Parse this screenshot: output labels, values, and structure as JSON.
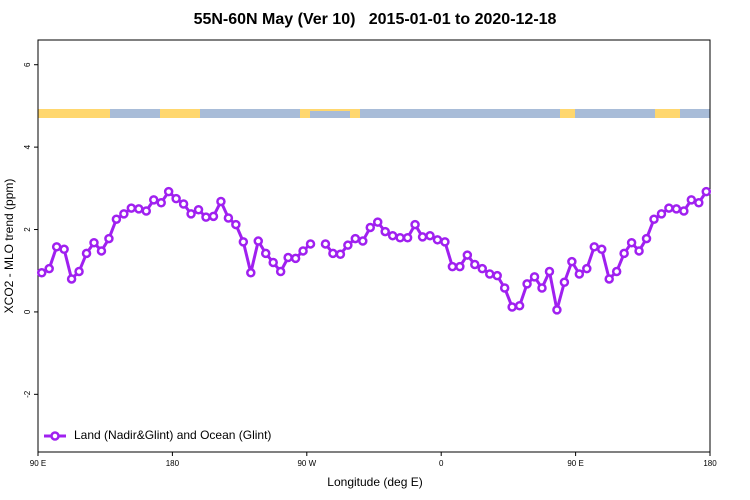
{
  "chart_data": {
    "type": "line",
    "title": "55N-60N May (Ver 10)   2015-01-01 to 2020-12-18",
    "x_label": "Longitude (deg E)",
    "y_label": "XCO2 - MLO trend (ppm)",
    "x": [
      92.5,
      97.5,
      102.5,
      107.5,
      112.5,
      117.5,
      122.5,
      127.5,
      132.5,
      137.5,
      142.5,
      147.5,
      152.5,
      157.5,
      162.5,
      167.5,
      172.5,
      177.5,
      182.5,
      187.5,
      192.5,
      197.5,
      202.5,
      207.5,
      212.5,
      217.5,
      222.5,
      227.5,
      232.5,
      237.5,
      242.5,
      247.5,
      252.5,
      257.5,
      262.5,
      267.5,
      272.5,
      277.5,
      282.5,
      287.5,
      292.5,
      297.5,
      302.5,
      307.5,
      312.5,
      317.5,
      322.5,
      327.5,
      332.5,
      337.5,
      342.5,
      347.5,
      352.5,
      357.5,
      362.5,
      367.5,
      372.5,
      377.5,
      382.5,
      387.5,
      392.5,
      397.5,
      402.5,
      407.5,
      412.5,
      417.5,
      422.5,
      427.5,
      432.5,
      437.5,
      442.5,
      447.5,
      452.5,
      457.5,
      462.5,
      467.5,
      472.5,
      477.5,
      482.5,
      487.5,
      492.5,
      497.5,
      502.5,
      507.5,
      512.5,
      517.5,
      522.5,
      527.5,
      532.5,
      537.5
    ],
    "series": [
      {
        "name": "Land (Nadir&Glint) and Ocean (Glint)",
        "color": "#a020f0",
        "values": [
          0.95,
          1.05,
          1.58,
          1.52,
          0.8,
          0.98,
          1.42,
          1.68,
          1.48,
          1.78,
          2.25,
          2.38,
          2.52,
          2.5,
          2.45,
          2.72,
          2.65,
          2.92,
          2.75,
          2.62,
          2.38,
          2.48,
          2.3,
          2.32,
          2.68,
          2.28,
          2.12,
          1.7,
          0.95,
          1.72,
          1.42,
          1.2,
          0.98,
          1.32,
          1.3,
          1.48,
          1.65,
          null,
          1.65,
          1.42,
          1.4,
          1.62,
          1.78,
          1.72,
          2.05,
          2.18,
          1.95,
          1.85,
          1.8,
          1.8,
          2.12,
          1.82,
          1.85,
          1.75,
          1.7,
          1.1,
          1.1,
          1.38,
          1.15,
          1.05,
          0.92,
          0.88,
          0.58,
          0.12,
          0.15,
          0.68,
          0.85,
          0.58,
          0.98,
          0.05,
          0.72,
          1.22,
          0.92,
          1.05,
          1.58,
          1.52,
          0.8,
          0.98,
          1.42,
          1.68,
          1.48,
          1.78,
          2.25,
          2.38,
          2.52,
          2.5,
          2.45,
          2.72,
          2.65,
          2.92
        ]
      }
    ],
    "xlim": [
      90,
      540
    ],
    "xticks": [
      {
        "value": 90,
        "label": "90 E"
      },
      {
        "value": 180,
        "label": "180"
      },
      {
        "value": 270,
        "label": "90 W"
      },
      {
        "value": 360,
        "label": "0"
      },
      {
        "value": 450,
        "label": "90 E"
      },
      {
        "value": 540,
        "label": "180"
      }
    ],
    "ylim": [
      -3.4,
      6.6
    ],
    "yticks": [
      -2,
      0,
      2,
      4,
      6
    ],
    "legend": "bottom-left"
  }
}
